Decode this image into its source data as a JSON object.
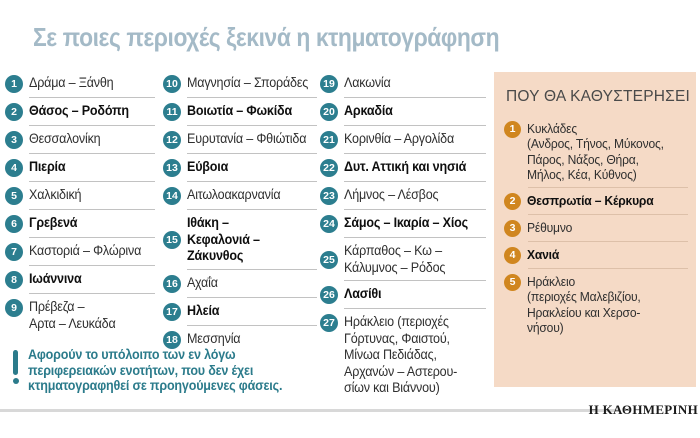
{
  "title": "Σε ποιες περιοχές ξεκινά η κτηματογράφηση",
  "columns": [
    {
      "items": [
        {
          "num": "1",
          "text": "Δράμα – Ξάνθη",
          "bold": false
        },
        {
          "num": "2",
          "text": "Θάσος – Ροδόπη",
          "bold": true
        },
        {
          "num": "3",
          "text": "Θεσσαλονίκη",
          "bold": false
        },
        {
          "num": "4",
          "text": "Πιερία",
          "bold": true
        },
        {
          "num": "5",
          "text": "Χαλκιδική",
          "bold": false
        },
        {
          "num": "6",
          "text": "Γρεβενά",
          "bold": true
        },
        {
          "num": "7",
          "text": "Καστοριά – Φλώρινα",
          "bold": false
        },
        {
          "num": "8",
          "text": "Ιωάννινα",
          "bold": true
        },
        {
          "num": "9",
          "text": "Πρέβεζα –\nΑρτα – Λευκάδα",
          "bold": false
        }
      ]
    },
    {
      "items": [
        {
          "num": "10",
          "text": "Μαγνησία – Σποράδες",
          "bold": false
        },
        {
          "num": "11",
          "text": "Βοιωτία – Φωκίδα",
          "bold": true
        },
        {
          "num": "12",
          "text": "Ευρυτανία – Φθιώτιδα",
          "bold": false
        },
        {
          "num": "13",
          "text": "Εύβοια",
          "bold": true
        },
        {
          "num": "14",
          "text": "Αιτωλοακαρνανία",
          "bold": false
        },
        {
          "num": "15",
          "text": "Ιθάκη –\nΚεφαλονιά –\nΖάκυνθος",
          "bold": true,
          "center": true
        },
        {
          "num": "16",
          "text": "Αχαΐα",
          "bold": false
        },
        {
          "num": "17",
          "text": "Ηλεία",
          "bold": true
        },
        {
          "num": "18",
          "text": "Μεσσηνία",
          "bold": false
        }
      ]
    },
    {
      "items": [
        {
          "num": "19",
          "text": "Λακωνία",
          "bold": false
        },
        {
          "num": "20",
          "text": "Αρκαδία",
          "bold": true
        },
        {
          "num": "21",
          "text": "Κορινθία – Αργολίδα",
          "bold": false
        },
        {
          "num": "22",
          "text": "Δυτ. Αττική και νησιά",
          "bold": true
        },
        {
          "num": "23",
          "text": "Λήμνος – Λέσβος",
          "bold": false
        },
        {
          "num": "24",
          "text": "Σάμος – Ικαρία – Χίος",
          "bold": true
        },
        {
          "num": "25",
          "text": "Κάρπαθος – Κω –\nΚάλυμνος – Ρόδος",
          "bold": false,
          "center": true
        },
        {
          "num": "26",
          "text": "Λασίθι",
          "bold": true
        },
        {
          "num": "27",
          "text": "Ηράκλειο (περιοχές\nΓόρτυνας, Φαιστού,\nΜίνωα Πεδιάδας,\nΑρχανών – Αστερου-\nσίων και Βιάννου)",
          "bold": false
        }
      ]
    }
  ],
  "note": {
    "icon": "exclamation-icon",
    "text": "Αφορούν το υπόλοιπο των εν λόγω\nπεριφερειακών ενοτήτων, που δεν έχει\nκτηματογραφηθεί σε προηγούμενες φάσεις."
  },
  "sidebar": {
    "title": "ΠΟΥ ΘΑ ΚΑΘΥΣΤΕΡΗΣΕΙ",
    "items": [
      {
        "num": "1",
        "text": "Κυκλάδες\n(Ανδρος, Τήνος, Μύκονος,\nΠάρος, Νάξος, Θήρα,\nΜήλος, Κέα, Κύθνος)",
        "bold": false
      },
      {
        "num": "2",
        "text": "Θεσπρωτία – Κέρκυρα",
        "bold": true
      },
      {
        "num": "3",
        "text": "Ρέθυμνο",
        "bold": false
      },
      {
        "num": "4",
        "text": "Χανιά",
        "bold": true
      },
      {
        "num": "5",
        "text": "Ηράκλειο\n(περιοχές Μαλεβιζίου,\nΗρακλείου και Χερσο-\nνήσου)",
        "bold": false
      }
    ]
  },
  "footer": {
    "brand": "Η ΚΑΘΗΜΕΡΙΝΗ"
  },
  "colors": {
    "accent_teal": "#2c7e8f",
    "accent_orange": "#d0861f",
    "sidebar_bg": "#f5dac6",
    "title": "#a4bac7"
  }
}
